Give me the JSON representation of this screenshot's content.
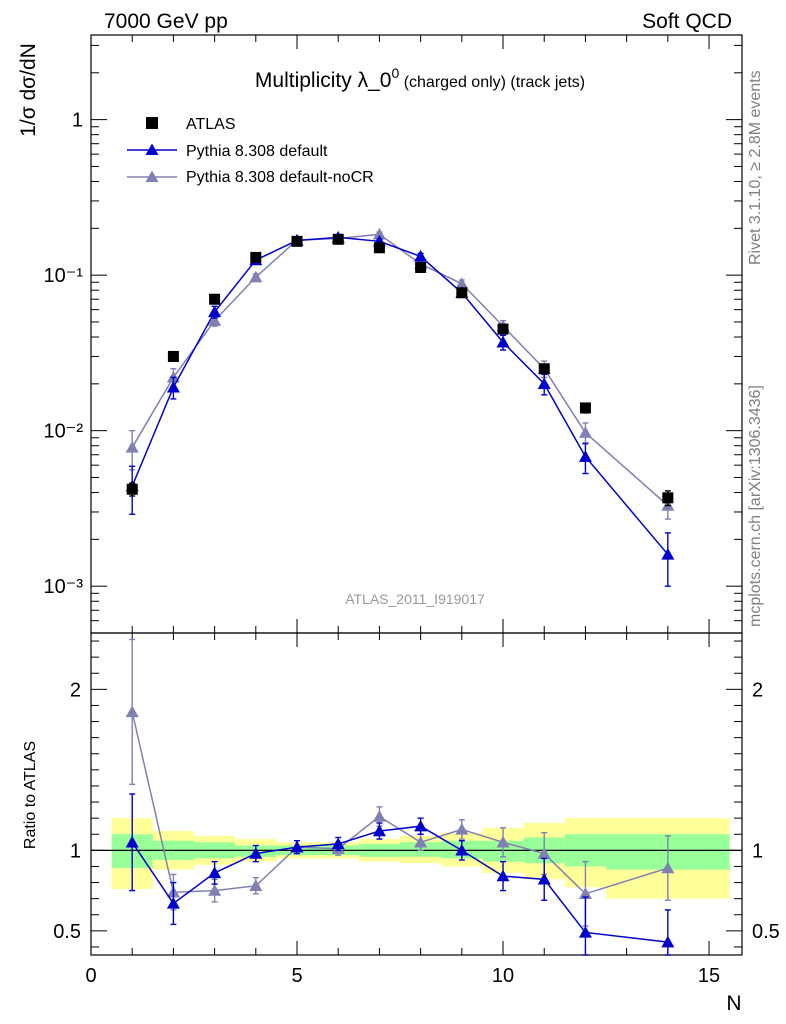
{
  "header": {
    "energy_label": "7000 GeV pp",
    "process_label": "Soft QCD"
  },
  "side_labels": {
    "rivet": "Rivet 3.1.10, ≥ 2.8M events",
    "source": "mcplots.cern.ch [arXiv:1306.3436]"
  },
  "chart_data": [
    {
      "type": "scatter",
      "title_main": "Multiplicity λ_0",
      "title_sup": "0",
      "title_tail": " (charged only) (track jets)",
      "ylabel": "1/σ dσ/dN",
      "yscale": "log",
      "ylim": [
        0.0005,
        3.5
      ],
      "xlim": [
        0,
        15.8
      ],
      "y_tick_labels": [
        "10⁻³",
        "10⁻²",
        "10⁻¹",
        "1"
      ],
      "watermark": "ATLAS_2011_I919017",
      "legend_position": "top-left",
      "legend": [
        "ATLAS",
        "Pythia 8.308 default",
        "Pythia 8.308 default-noCR"
      ],
      "x": [
        1,
        2,
        3,
        4,
        5,
        6,
        7,
        8,
        9,
        10,
        11,
        12,
        14
      ],
      "series": [
        {
          "name": "ATLAS",
          "color": "#000000",
          "marker": "square",
          "values": [
            0.0042,
            0.03,
            0.07,
            0.13,
            0.165,
            0.17,
            0.15,
            0.112,
            0.077,
            0.045,
            0.025,
            0.014,
            0.0037
          ],
          "errors": [
            0.0004,
            0.0015,
            0.003,
            0.004,
            0.005,
            0.005,
            0.004,
            0.004,
            0.003,
            0.002,
            0.0015,
            0.001,
            0.0004
          ]
        },
        {
          "name": "Pythia 8.308 default",
          "color": "#0000cc",
          "marker": "triangle",
          "values": [
            0.0044,
            0.019,
            0.058,
            0.125,
            0.167,
            0.175,
            0.165,
            0.132,
            0.077,
            0.037,
            0.02,
            0.0068,
            0.0016
          ],
          "errors": [
            0.0015,
            0.003,
            0.005,
            0.006,
            0.006,
            0.006,
            0.006,
            0.006,
            0.005,
            0.004,
            0.003,
            0.0015,
            0.0006
          ]
        },
        {
          "name": "Pythia 8.308 default-noCR",
          "color": "#8080b3",
          "marker": "triangle",
          "values": [
            0.0078,
            0.022,
            0.051,
            0.097,
            0.168,
            0.172,
            0.183,
            0.118,
            0.088,
            0.047,
            0.025,
            0.0097,
            0.0033
          ],
          "errors": [
            0.0022,
            0.003,
            0.004,
            0.005,
            0.006,
            0.006,
            0.006,
            0.005,
            0.005,
            0.004,
            0.003,
            0.0015,
            0.0006
          ]
        }
      ]
    },
    {
      "type": "scatter",
      "ylabel": "Ratio to ATLAS",
      "xlabel": "N",
      "ylim": [
        0.35,
        2.35
      ],
      "xlim": [
        0,
        15.8
      ],
      "x_tick_labels": [
        "0",
        "5",
        "10",
        "15"
      ],
      "y_tick_labels": [
        "0.5",
        "1",
        "2"
      ],
      "reference_line": 1,
      "uncertainty_bands": {
        "bin_edges": [
          0.5,
          1.5,
          2.5,
          3.5,
          4.5,
          5.5,
          6.5,
          7.5,
          8.5,
          9.5,
          10.5,
          11.5,
          12.5,
          15.5
        ],
        "inner_color": "#99ff99",
        "outer_color": "#ffff99",
        "inner": [
          [
            0.89,
            1.1
          ],
          [
            0.94,
            1.06
          ],
          [
            0.95,
            1.05
          ],
          [
            0.96,
            1.03
          ],
          [
            0.97,
            1.03
          ],
          [
            0.97,
            1.03
          ],
          [
            0.96,
            1.04
          ],
          [
            0.96,
            1.05
          ],
          [
            0.95,
            1.06
          ],
          [
            0.93,
            1.06
          ],
          [
            0.92,
            1.08
          ],
          [
            0.9,
            1.1
          ],
          [
            0.88,
            1.1
          ]
        ],
        "outer": [
          [
            0.76,
            1.2
          ],
          [
            0.88,
            1.12
          ],
          [
            0.91,
            1.09
          ],
          [
            0.93,
            1.07
          ],
          [
            0.95,
            1.05
          ],
          [
            0.95,
            1.05
          ],
          [
            0.93,
            1.07
          ],
          [
            0.92,
            1.09
          ],
          [
            0.9,
            1.11
          ],
          [
            0.86,
            1.14
          ],
          [
            0.82,
            1.17
          ],
          [
            0.77,
            1.2
          ],
          [
            0.7,
            1.2
          ]
        ]
      },
      "x": [
        1,
        2,
        3,
        4,
        5,
        6,
        7,
        8,
        9,
        10,
        11,
        12,
        14
      ],
      "series": [
        {
          "name": "Pythia 8.308 default",
          "color": "#0000cc",
          "values": [
            1.05,
            0.67,
            0.86,
            0.98,
            1.02,
            1.04,
            1.12,
            1.15,
            1.0,
            0.84,
            0.82,
            0.49,
            0.43
          ],
          "errors": [
            0.3,
            0.13,
            0.07,
            0.05,
            0.04,
            0.04,
            0.05,
            0.05,
            0.06,
            0.09,
            0.13,
            0.22,
            0.2
          ]
        },
        {
          "name": "Pythia 8.308 default-noCR",
          "color": "#8080b3",
          "values": [
            1.86,
            0.74,
            0.75,
            0.78,
            1.02,
            1.01,
            1.21,
            1.05,
            1.13,
            1.05,
            0.98,
            0.73,
            0.89
          ],
          "errors": [
            0.45,
            0.11,
            0.07,
            0.05,
            0.04,
            0.04,
            0.06,
            0.05,
            0.06,
            0.09,
            0.13,
            0.2,
            0.2
          ]
        }
      ]
    }
  ]
}
